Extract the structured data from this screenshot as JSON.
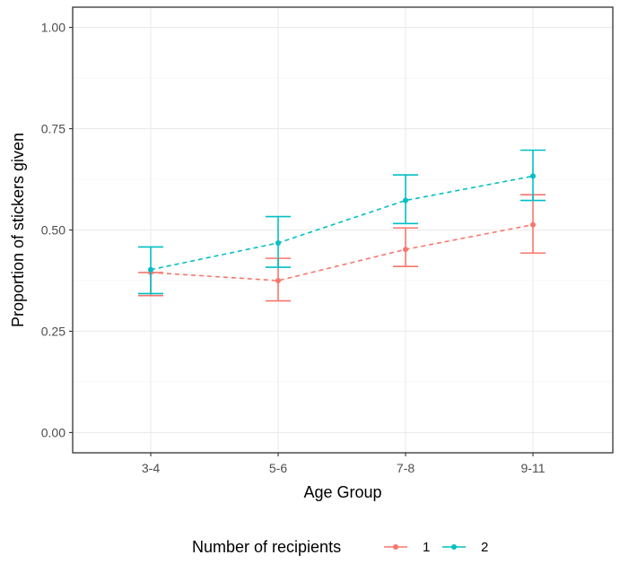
{
  "chart_data": {
    "type": "line",
    "xlabel": "Age Group",
    "ylabel": "Proportion of stickers given",
    "categories": [
      "3-4",
      "5-6",
      "7-8",
      "9-11"
    ],
    "ylim": [
      -0.05,
      1.05
    ],
    "yticks": [
      "0.00",
      "0.25",
      "0.50",
      "0.75",
      "1.00"
    ],
    "ytick_values": [
      0,
      0.25,
      0.5,
      0.75,
      1.0
    ],
    "grid": true,
    "legend": {
      "title": "Number of recipients",
      "position": "bottom"
    },
    "series": [
      {
        "name": "1",
        "color": "#F8766D",
        "values": [
          0.395,
          0.375,
          0.452,
          0.513
        ],
        "lower": [
          0.338,
          0.325,
          0.41,
          0.443
        ],
        "upper": [
          0.395,
          0.43,
          0.505,
          0.587
        ]
      },
      {
        "name": "2",
        "color": "#00BFC4",
        "values": [
          0.402,
          0.468,
          0.573,
          0.633
        ],
        "lower": [
          0.343,
          0.408,
          0.516,
          0.573
        ],
        "upper": [
          0.458,
          0.533,
          0.636,
          0.697
        ]
      }
    ]
  }
}
